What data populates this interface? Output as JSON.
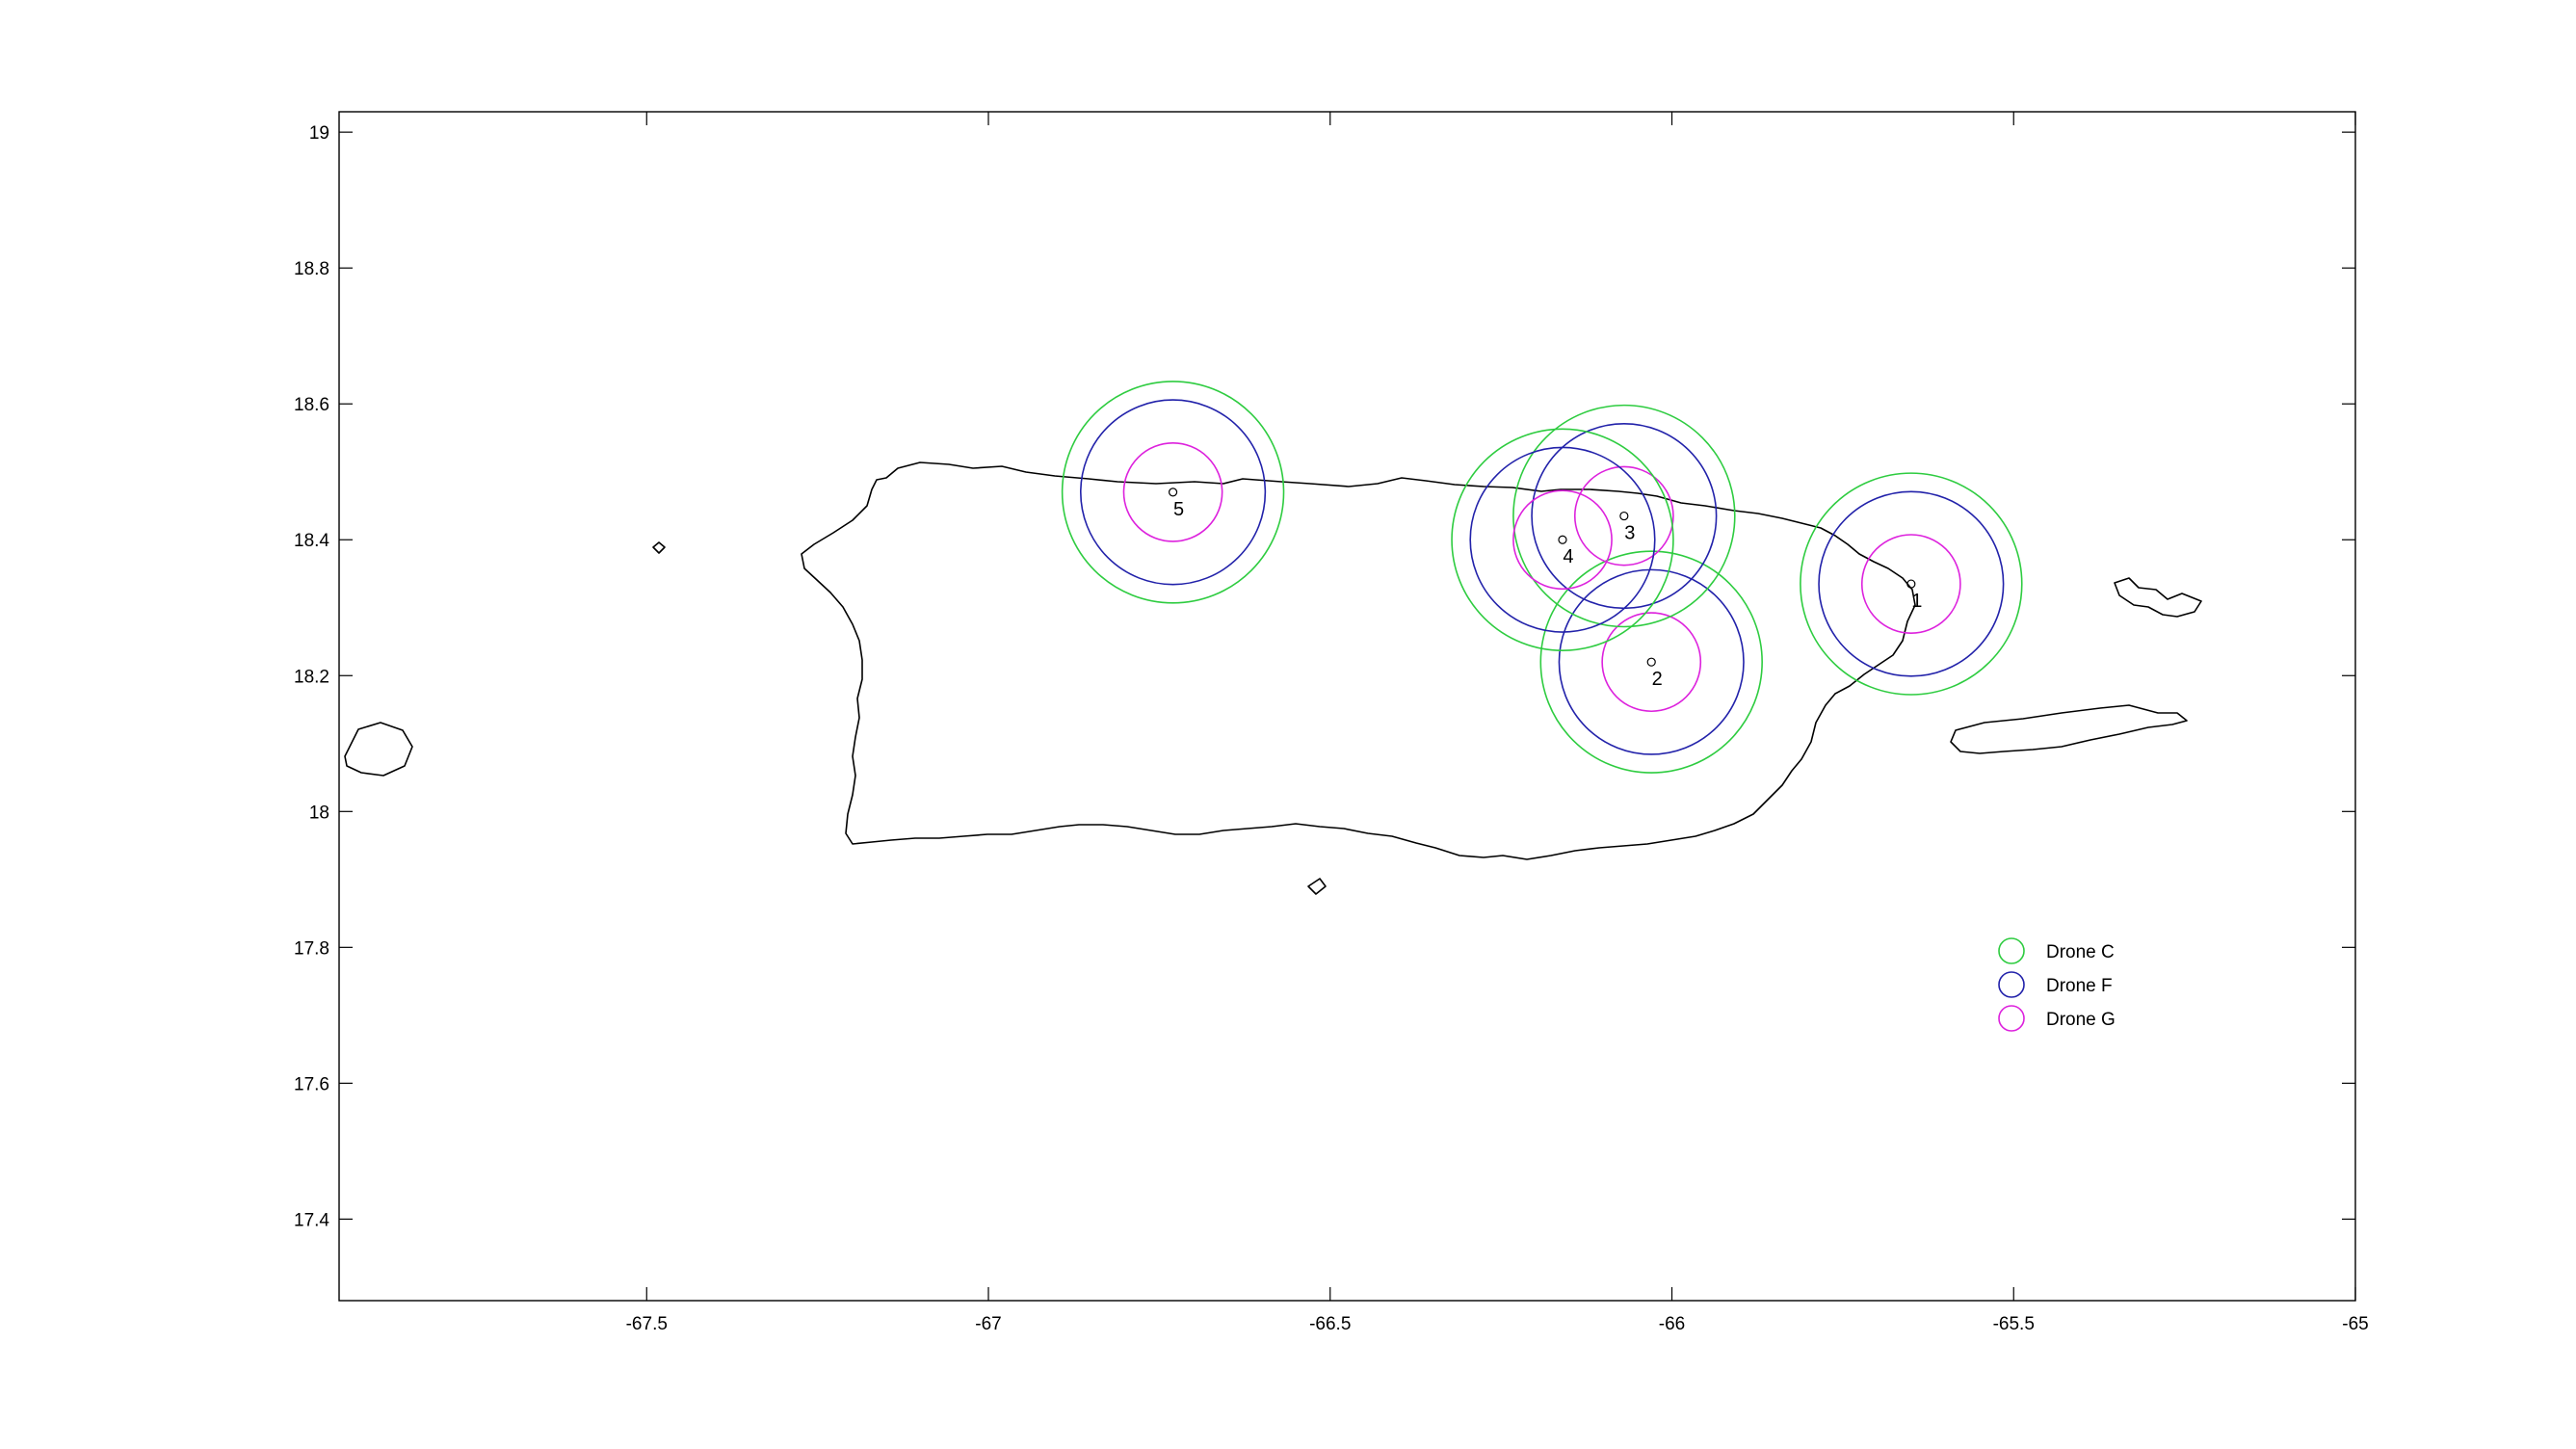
{
  "chart_data": {
    "type": "scatter",
    "title": "",
    "xlabel": "",
    "ylabel": "",
    "xlim": [
      -67.95,
      -65.0
    ],
    "ylim": [
      17.28,
      19.03
    ],
    "x_ticks": [
      "-67.5",
      "-67",
      "-66.5",
      "-66",
      "-65.5",
      "-65"
    ],
    "x_tick_values": [
      -67.5,
      -67.0,
      -66.5,
      -66.0,
      -65.5,
      -65.0
    ],
    "y_ticks": [
      "17.4",
      "17.6",
      "17.8",
      "18",
      "18.2",
      "18.4",
      "18.6",
      "18.8",
      "19"
    ],
    "y_tick_values": [
      17.4,
      17.6,
      17.8,
      18.0,
      18.2,
      18.4,
      18.6,
      18.8,
      19.0
    ],
    "grid": false,
    "legend_position": "bottom-right",
    "series": [
      {
        "name": "Drone C",
        "color": "#2ecc40",
        "radius_deg": 0.162
      },
      {
        "name": "Drone F",
        "color": "#2222aa",
        "radius_deg": 0.135
      },
      {
        "name": "Drone G",
        "color": "#dd22dd",
        "radius_deg": 0.072
      }
    ],
    "sites": [
      {
        "label": "1",
        "lon": -65.65,
        "lat": 18.335
      },
      {
        "label": "2",
        "lon": -66.03,
        "lat": 18.22
      },
      {
        "label": "3",
        "lon": -66.07,
        "lat": 18.435
      },
      {
        "label": "4",
        "lon": -66.16,
        "lat": 18.4
      },
      {
        "label": "5",
        "lon": -66.73,
        "lat": 18.47
      }
    ]
  }
}
